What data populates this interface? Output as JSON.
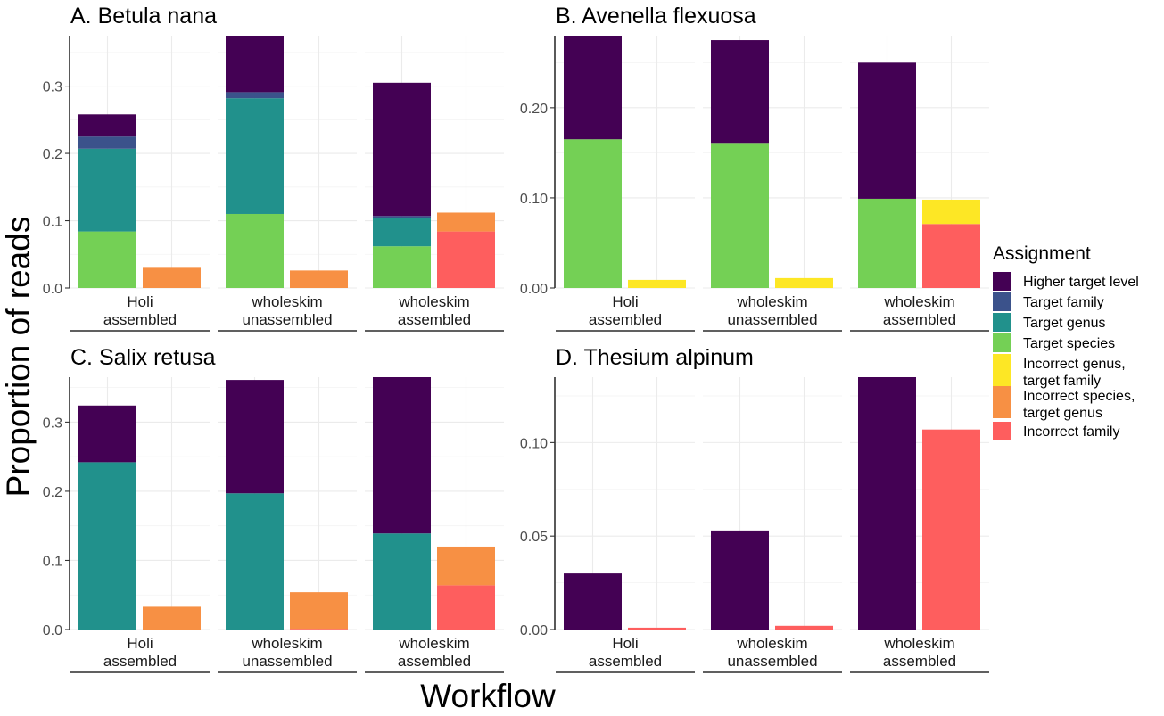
{
  "axis": {
    "xlabel": "Workflow",
    "ylabel": "Proportion of reads"
  },
  "legend": {
    "title": "Assignment",
    "entries": [
      {
        "key": "higher",
        "lines": [
          "Higher target level"
        ],
        "color": "#440154"
      },
      {
        "key": "family",
        "lines": [
          "Target family"
        ],
        "color": "#3b528b"
      },
      {
        "key": "genus",
        "lines": [
          "Target genus"
        ],
        "color": "#21918c"
      },
      {
        "key": "species",
        "lines": [
          "Target species"
        ],
        "color": "#74d055"
      },
      {
        "key": "incgenus",
        "lines": [
          "Incorrect genus,",
          "target family"
        ],
        "color": "#fde725"
      },
      {
        "key": "incspecies",
        "lines": [
          "Incorrect species,",
          "target genus"
        ],
        "color": "#f79044"
      },
      {
        "key": "incfamily",
        "lines": [
          "Incorrect family"
        ],
        "color": "#fe5e5e"
      }
    ]
  },
  "chart_data": [
    {
      "type": "bar",
      "stacked": true,
      "title": "A. Betula nana",
      "ylim": [
        0,
        0.375
      ],
      "yticks": [
        0.0,
        0.1,
        0.2,
        0.3
      ],
      "tick_labels": [
        "0.0",
        "0.1",
        "0.2",
        "0.3"
      ],
      "facets": [
        {
          "label": [
            "Holi",
            "assembled"
          ],
          "correct": {
            "species": 0.084,
            "genus": 0.123,
            "family": 0.018,
            "higher": 0.033
          },
          "incorrect": {
            "incspecies": 0.03
          }
        },
        {
          "label": [
            "wholeskim",
            "unassembled"
          ],
          "correct": {
            "species": 0.11,
            "genus": 0.172,
            "family": 0.009,
            "higher": 0.084
          },
          "incorrect": {
            "incspecies": 0.026
          }
        },
        {
          "label": [
            "wholeskim",
            "assembled"
          ],
          "correct": {
            "species": 0.062,
            "genus": 0.042,
            "family": 0.003,
            "higher": 0.198
          },
          "incorrect": {
            "incfamily": 0.084,
            "incspecies": 0.028
          }
        }
      ]
    },
    {
      "type": "bar",
      "stacked": true,
      "title": "B. Avenella flexuosa",
      "ylim": [
        0,
        0.28
      ],
      "yticks": [
        0.0,
        0.1,
        0.2
      ],
      "tick_labels": [
        "0.00",
        "0.10",
        "0.20"
      ],
      "facets": [
        {
          "label": [
            "Holi",
            "assembled"
          ],
          "correct": {
            "species": 0.165,
            "higher": 0.115
          },
          "incorrect": {
            "incgenus": 0.009
          }
        },
        {
          "label": [
            "wholeskim",
            "unassembled"
          ],
          "correct": {
            "species": 0.161,
            "higher": 0.114
          },
          "incorrect": {
            "incgenus": 0.011
          }
        },
        {
          "label": [
            "wholeskim",
            "assembled"
          ],
          "correct": {
            "species": 0.099,
            "higher": 0.151
          },
          "incorrect": {
            "incfamily": 0.071,
            "incgenus": 0.027
          }
        }
      ]
    },
    {
      "type": "bar",
      "stacked": true,
      "title": "C. Salix retusa",
      "ylim": [
        0,
        0.365
      ],
      "yticks": [
        0.0,
        0.1,
        0.2,
        0.3
      ],
      "tick_labels": [
        "0.0",
        "0.1",
        "0.2",
        "0.3"
      ],
      "facets": [
        {
          "label": [
            "Holi",
            "assembled"
          ],
          "correct": {
            "genus": 0.242,
            "higher": 0.082
          },
          "incorrect": {
            "incspecies": 0.033
          }
        },
        {
          "label": [
            "wholeskim",
            "unassembled"
          ],
          "correct": {
            "genus": 0.197,
            "higher": 0.164
          },
          "incorrect": {
            "incfamily": 0.001,
            "incspecies": 0.053
          }
        },
        {
          "label": [
            "wholeskim",
            "assembled"
          ],
          "correct": {
            "genus": 0.139,
            "higher": 0.226
          },
          "incorrect": {
            "incfamily": 0.064,
            "incspecies": 0.056
          }
        }
      ]
    },
    {
      "type": "bar",
      "stacked": true,
      "title": "D. Thesium alpinum",
      "ylim": [
        0,
        0.135
      ],
      "yticks": [
        0.0,
        0.05,
        0.1
      ],
      "tick_labels": [
        "0.00",
        "0.05",
        "0.10"
      ],
      "facets": [
        {
          "label": [
            "Holi",
            "assembled"
          ],
          "correct": {
            "higher": 0.03
          },
          "incorrect": {
            "incfamily": 0.001
          }
        },
        {
          "label": [
            "wholeskim",
            "unassembled"
          ],
          "correct": {
            "higher": 0.053
          },
          "incorrect": {
            "incfamily": 0.002
          }
        },
        {
          "label": [
            "wholeskim",
            "assembled"
          ],
          "correct": {
            "higher": 0.135
          },
          "incorrect": {
            "incfamily": 0.107
          }
        }
      ]
    }
  ]
}
